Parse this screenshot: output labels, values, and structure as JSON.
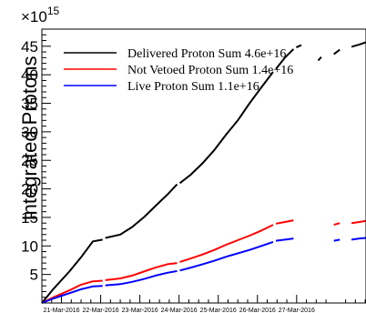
{
  "chart_data": {
    "type": "line",
    "title": "",
    "ylabel": "Integrated Protons",
    "xlabel": "",
    "exponent_label": "×10",
    "exponent_power": "15",
    "ylim": [
      0,
      48
    ],
    "xlim": [
      0,
      8.27
    ],
    "y_ticks": [
      5,
      10,
      15,
      20,
      25,
      30,
      35,
      40,
      45
    ],
    "y_tick_labels": [
      "5",
      "10",
      "15",
      "20",
      "25",
      "30",
      "35",
      "40",
      "45"
    ],
    "x_ticks": [
      {
        "x": 0.5,
        "label": "21-Mar-2016"
      },
      {
        "x": 1.5,
        "label": "22-Mar-2016"
      },
      {
        "x": 2.5,
        "label": "23-Mar-2016"
      },
      {
        "x": 3.5,
        "label": "24-Mar-2016"
      },
      {
        "x": 4.5,
        "label": "25-Mar-2016"
      },
      {
        "x": 5.5,
        "label": "26-Mar-2016"
      },
      {
        "x": 6.5,
        "label": "27-Mar-2016"
      }
    ],
    "legend": [
      {
        "label": "Delivered Proton Sum  4.6e+16",
        "color": "#000000"
      },
      {
        "label": "Not Vetoed Proton Sum  1.4e+16",
        "color": "#ff0000"
      },
      {
        "label": "Live Proton Sum  1.1e+16",
        "color": "#0000ff"
      }
    ],
    "series": [
      {
        "name": "Delivered Proton Sum",
        "color": "#000000",
        "segments": [
          [
            [
              0.0,
              0.0
            ],
            [
              0.3,
              2.5
            ],
            [
              0.7,
              5.5
            ],
            [
              1.0,
              8.0
            ],
            [
              1.3,
              10.8
            ],
            [
              1.55,
              11.1
            ]
          ],
          [
            [
              1.62,
              11.4
            ],
            [
              2.0,
              12.0
            ],
            [
              2.3,
              13.3
            ],
            [
              2.6,
              15.0
            ],
            [
              2.9,
              17.0
            ],
            [
              3.2,
              19.0
            ],
            [
              3.45,
              20.8
            ]
          ],
          [
            [
              3.52,
              21.0
            ],
            [
              3.8,
              22.5
            ],
            [
              4.1,
              24.5
            ],
            [
              4.4,
              26.8
            ],
            [
              4.7,
              29.5
            ],
            [
              5.0,
              32.0
            ],
            [
              5.3,
              35.0
            ],
            [
              5.6,
              37.8
            ],
            [
              5.9,
              40.5
            ]
          ],
          [
            [
              5.97,
              41.0
            ],
            [
              6.2,
              43.0
            ],
            [
              6.42,
              44.5
            ]
          ],
          [
            [
              6.49,
              44.8
            ],
            [
              6.62,
              45.2
            ]
          ],
          [
            [
              7.05,
              42.5
            ],
            [
              7.13,
              43.1
            ]
          ],
          [
            [
              7.45,
              43.6
            ],
            [
              7.6,
              44.4
            ]
          ],
          [
            [
              7.9,
              44.9
            ],
            [
              8.1,
              45.3
            ],
            [
              8.27,
              45.7
            ]
          ]
        ]
      },
      {
        "name": "Not Vetoed Proton Sum",
        "color": "#ff0000",
        "segments": [
          [
            [
              0.0,
              0.0
            ],
            [
              0.3,
              1.0
            ],
            [
              0.7,
              2.2
            ],
            [
              1.0,
              3.2
            ],
            [
              1.3,
              3.8
            ],
            [
              1.55,
              3.9
            ]
          ],
          [
            [
              1.62,
              4.0
            ],
            [
              2.0,
              4.3
            ],
            [
              2.3,
              4.8
            ],
            [
              2.6,
              5.5
            ],
            [
              2.9,
              6.2
            ],
            [
              3.2,
              6.8
            ],
            [
              3.45,
              7.0
            ]
          ],
          [
            [
              3.52,
              7.2
            ],
            [
              3.8,
              7.8
            ],
            [
              4.1,
              8.5
            ],
            [
              4.4,
              9.3
            ],
            [
              4.7,
              10.2
            ],
            [
              5.0,
              11.0
            ],
            [
              5.3,
              11.8
            ],
            [
              5.6,
              12.7
            ],
            [
              5.9,
              13.7
            ]
          ],
          [
            [
              5.97,
              13.9
            ],
            [
              6.2,
              14.2
            ],
            [
              6.42,
              14.5
            ]
          ],
          [
            [
              7.45,
              13.7
            ],
            [
              7.6,
              14.0
            ]
          ],
          [
            [
              7.9,
              14.0
            ],
            [
              8.1,
              14.2
            ],
            [
              8.27,
              14.4
            ]
          ]
        ]
      },
      {
        "name": "Live Proton Sum",
        "color": "#0000ff",
        "segments": [
          [
            [
              0.0,
              0.0
            ],
            [
              0.3,
              0.8
            ],
            [
              0.7,
              1.7
            ],
            [
              1.0,
              2.4
            ],
            [
              1.3,
              2.9
            ],
            [
              1.55,
              3.0
            ]
          ],
          [
            [
              1.62,
              3.1
            ],
            [
              2.0,
              3.3
            ],
            [
              2.3,
              3.7
            ],
            [
              2.6,
              4.2
            ],
            [
              2.9,
              4.8
            ],
            [
              3.2,
              5.3
            ],
            [
              3.45,
              5.6
            ]
          ],
          [
            [
              3.52,
              5.7
            ],
            [
              3.8,
              6.2
            ],
            [
              4.1,
              6.8
            ],
            [
              4.4,
              7.4
            ],
            [
              4.7,
              8.1
            ],
            [
              5.0,
              8.7
            ],
            [
              5.3,
              9.3
            ],
            [
              5.6,
              10.0
            ],
            [
              5.9,
              10.7
            ]
          ],
          [
            [
              5.97,
              10.9
            ],
            [
              6.2,
              11.1
            ],
            [
              6.42,
              11.3
            ]
          ],
          [
            [
              7.45,
              10.9
            ],
            [
              7.6,
              11.1
            ]
          ],
          [
            [
              7.9,
              11.1
            ],
            [
              8.1,
              11.3
            ],
            [
              8.27,
              11.4
            ]
          ]
        ]
      }
    ]
  }
}
